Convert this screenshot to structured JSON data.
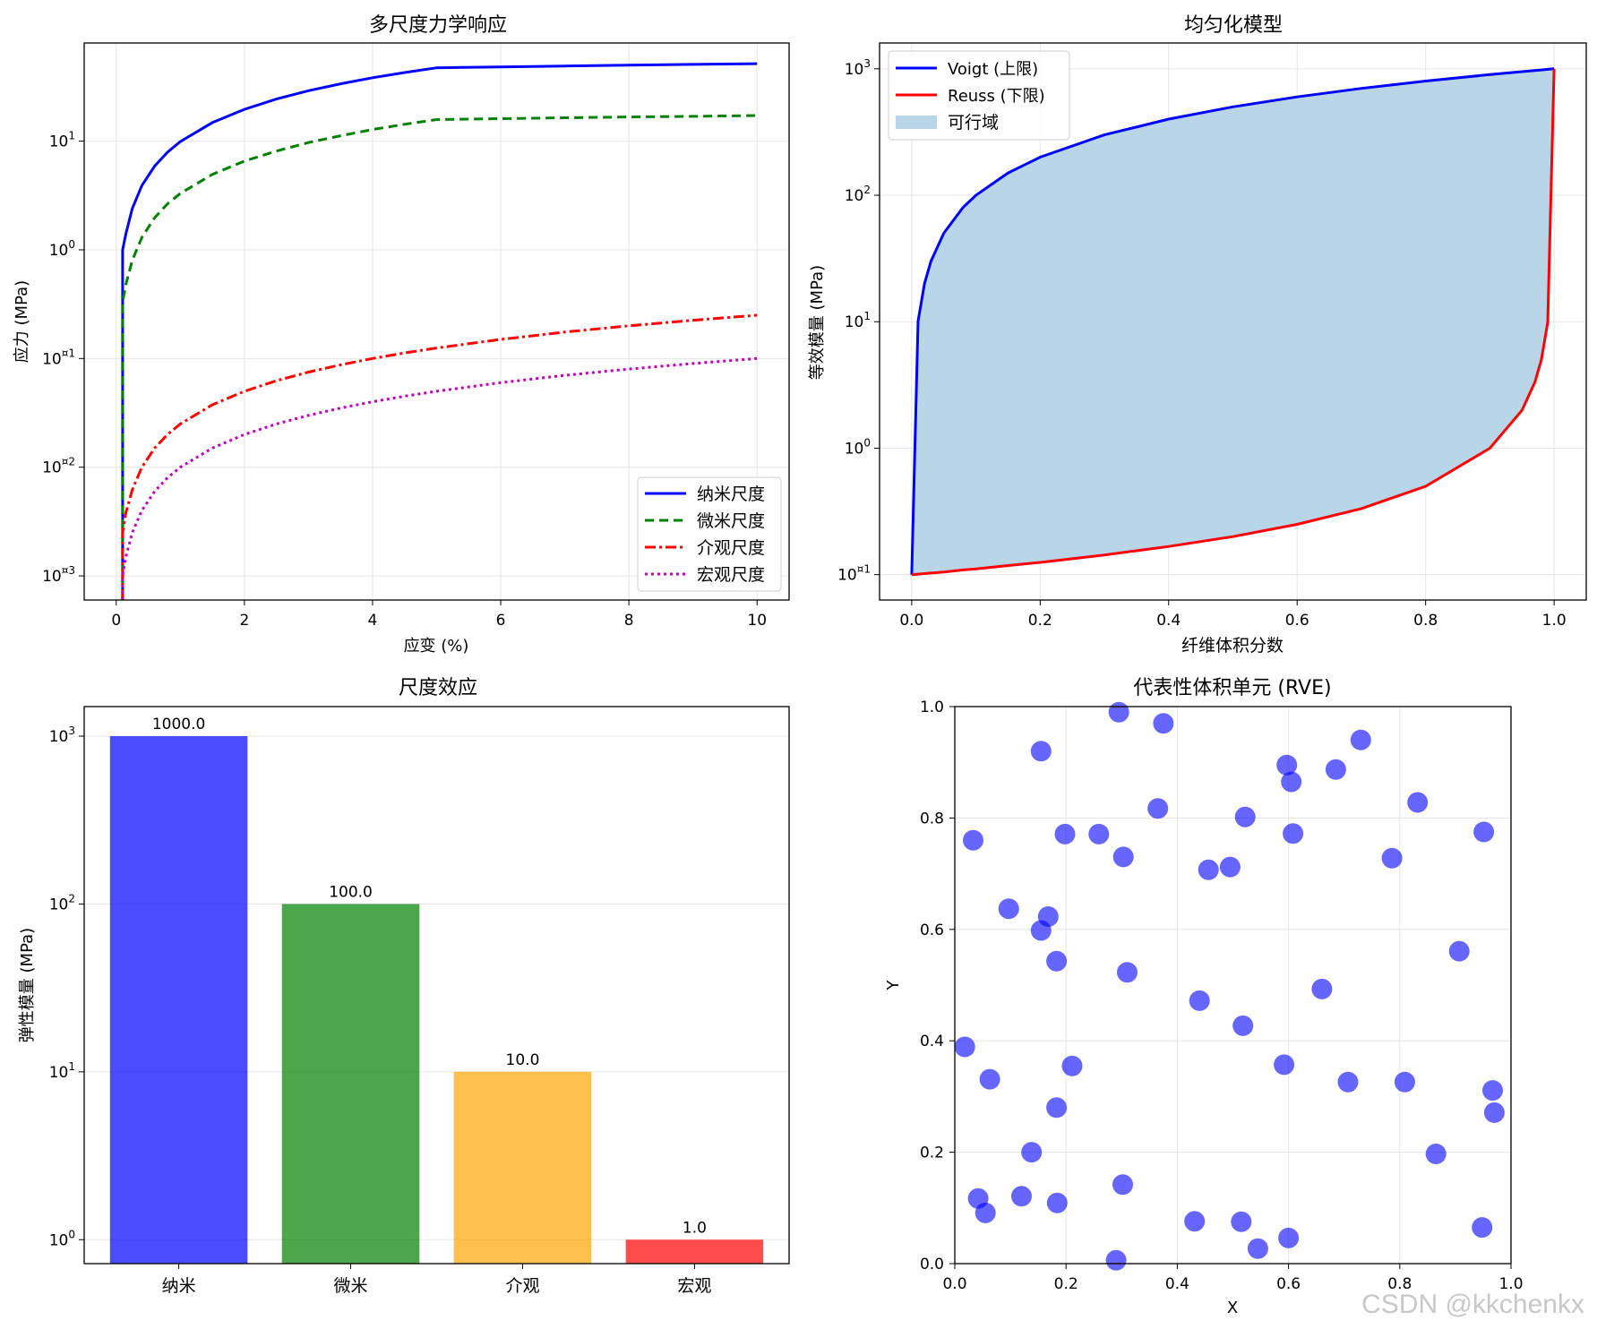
{
  "watermark": "CSDN @kkchenkx",
  "colors": {
    "blue": "#0000ff",
    "green": "#008000",
    "red": "#ff0000",
    "magenta": "#bf00bf",
    "orange": "#ffa500",
    "fill": "#b9d5e8",
    "grid": "#e6e6e6"
  },
  "chart_data": [
    {
      "id": "ax1",
      "type": "line",
      "title": "多尺度力学响应",
      "xlabel": "应变 (%)",
      "ylabel": "应力 (MPa)",
      "xscale": "linear",
      "yscale": "log",
      "xlim": [
        -0.5,
        10.5
      ],
      "ylim": [
        0.0006,
        80
      ],
      "xticks": [
        0,
        2,
        4,
        6,
        8,
        10
      ],
      "xtick_labels": [
        "0",
        "2",
        "4",
        "6",
        "8",
        "10"
      ],
      "yticks": [
        0.001,
        0.01,
        0.1,
        1,
        10
      ],
      "ytick_labels": [
        [
          "10",
          "¤3"
        ],
        [
          "10",
          "¤2"
        ],
        [
          "10",
          "¤1"
        ],
        [
          "10",
          "0"
        ],
        [
          "10",
          "1"
        ]
      ],
      "grid": true,
      "legend": "lower right",
      "series": [
        {
          "name": "纳米尺度",
          "color": "blue",
          "dash": "",
          "x": [
            0.1,
            0.1,
            0.15,
            0.25,
            0.4,
            0.6,
            0.8,
            1.0,
            1.5,
            2.0,
            2.5,
            3.0,
            3.5,
            4.0,
            4.5,
            5.0,
            6,
            7,
            8,
            9,
            10
          ],
          "y": [
            0.0006,
            1.0,
            1.4,
            2.4,
            3.9,
            5.9,
            7.9,
            9.9,
            14.8,
            19.6,
            24.4,
            29.1,
            33.7,
            38.3,
            42.8,
            47.3,
            48.2,
            49.1,
            50.0,
            50.8,
            51.6
          ]
        },
        {
          "name": "微米尺度",
          "color": "green",
          "dash": "10,6",
          "x": [
            0.1,
            0.1,
            0.15,
            0.25,
            0.4,
            0.6,
            0.8,
            1.0,
            1.5,
            2.0,
            2.5,
            3.0,
            3.5,
            4.0,
            4.5,
            5.0,
            6,
            7,
            8,
            9,
            10
          ],
          "y": [
            0.0006,
            0.33,
            0.48,
            0.8,
            1.3,
            1.98,
            2.65,
            3.3,
            4.95,
            6.55,
            8.1,
            9.7,
            11.2,
            12.8,
            14.3,
            15.8,
            16.1,
            16.4,
            16.7,
            16.9,
            17.2
          ]
        },
        {
          "name": "介观尺度",
          "color": "red",
          "dash": "12,4,3,4",
          "x": [
            0.1,
            0.1,
            0.15,
            0.25,
            0.4,
            0.6,
            0.8,
            1.0,
            1.5,
            2.0,
            2.5,
            3.0,
            3.5,
            4.0,
            4.5,
            5.0,
            6,
            7,
            8,
            9,
            10
          ],
          "y": [
            0.0006,
            0.0025,
            0.0038,
            0.0062,
            0.01,
            0.015,
            0.02,
            0.025,
            0.0375,
            0.05,
            0.0625,
            0.075,
            0.0875,
            0.1,
            0.1125,
            0.125,
            0.15,
            0.175,
            0.2,
            0.225,
            0.25
          ]
        },
        {
          "name": "宏观尺度",
          "color": "magenta",
          "dash": "3,4",
          "x": [
            0.1,
            0.1,
            0.15,
            0.25,
            0.4,
            0.6,
            0.8,
            1.0,
            1.5,
            2.0,
            2.5,
            3.0,
            3.5,
            4.0,
            4.5,
            5.0,
            6,
            7,
            8,
            9,
            10
          ],
          "y": [
            0.0006,
            0.001,
            0.0015,
            0.0025,
            0.004,
            0.006,
            0.008,
            0.01,
            0.015,
            0.02,
            0.025,
            0.03,
            0.035,
            0.04,
            0.045,
            0.05,
            0.06,
            0.07,
            0.08,
            0.09,
            0.1
          ]
        }
      ]
    },
    {
      "id": "ax2",
      "type": "area",
      "title": "均匀化模型",
      "xlabel": "纤维体积分数",
      "ylabel": "等效模量 (MPa)",
      "xscale": "linear",
      "yscale": "log",
      "xlim": [
        -0.05,
        1.05
      ],
      "ylim": [
        0.063,
        1600
      ],
      "xticks": [
        0,
        0.2,
        0.4,
        0.6,
        0.8,
        1.0
      ],
      "xtick_labels": [
        "0.0",
        "0.2",
        "0.4",
        "0.6",
        "0.8",
        "1.0"
      ],
      "yticks": [
        0.1,
        1,
        10,
        100,
        1000
      ],
      "ytick_labels": [
        [
          "10",
          "¤1"
        ],
        [
          "10",
          "0"
        ],
        [
          "10",
          "1"
        ],
        [
          "10",
          "2"
        ],
        [
          "10",
          "3"
        ]
      ],
      "grid": true,
      "legend": "upper left",
      "x": [
        0,
        0.01,
        0.02,
        0.03,
        0.05,
        0.08,
        0.1,
        0.15,
        0.2,
        0.3,
        0.4,
        0.5,
        0.6,
        0.7,
        0.8,
        0.9,
        0.95,
        0.97,
        0.98,
        0.99,
        1.0
      ],
      "series": [
        {
          "name": "Voigt (上限)",
          "color": "blue",
          "values": [
            0.1,
            10.1,
            20.1,
            30.1,
            50.1,
            80.1,
            100.1,
            150.1,
            200.1,
            300.1,
            400.1,
            500.1,
            600.0,
            700.0,
            800.0,
            900.0,
            950.0,
            970.0,
            980.0,
            990.0,
            1000.0
          ]
        },
        {
          "name": "Reuss (下限)",
          "color": "red",
          "values": [
            0.1,
            0.101,
            0.102,
            0.103,
            0.105,
            0.109,
            0.111,
            0.118,
            0.125,
            0.143,
            0.167,
            0.2,
            0.25,
            0.333,
            0.5,
            0.999,
            1.996,
            3.32,
            4.97,
            9.91,
            1000.0
          ]
        }
      ],
      "fill_label": "可行域"
    },
    {
      "id": "ax3",
      "type": "bar",
      "title": "尺度效应",
      "xlabel": "",
      "ylabel": "弹性模量 (MPa)",
      "yscale": "log",
      "ylim": [
        0.72,
        1500
      ],
      "categories": [
        "纳米",
        "微米",
        "介观",
        "宏观"
      ],
      "values": [
        1000.0,
        100.0,
        10.0,
        1.0
      ],
      "value_labels": [
        "1000.0",
        "100.0",
        "10.0",
        "1.0"
      ],
      "bar_colors": [
        "blue",
        "green",
        "orange",
        "red"
      ],
      "yticks": [
        1,
        10,
        100,
        1000
      ],
      "ytick_labels": [
        [
          "10",
          "0"
        ],
        [
          "10",
          "1"
        ],
        [
          "10",
          "2"
        ],
        [
          "10",
          "3"
        ]
      ],
      "grid": true
    },
    {
      "id": "ax4",
      "type": "scatter",
      "title": "代表性体积单元 (RVE)",
      "xlabel": "X",
      "ylabel": "Y",
      "xlim": [
        0,
        1
      ],
      "ylim": [
        0,
        1
      ],
      "xticks": [
        0,
        0.2,
        0.4,
        0.6,
        0.8,
        1.0
      ],
      "xtick_labels": [
        "0.0",
        "0.2",
        "0.4",
        "0.6",
        "0.8",
        "1.0"
      ],
      "yticks": [
        0,
        0.2,
        0.4,
        0.6,
        0.8,
        1.0
      ],
      "ytick_labels": [
        "0.0",
        "0.2",
        "0.4",
        "0.6",
        "0.8",
        "1.0"
      ],
      "grid": true,
      "points": [
        [
          0.295,
          0.99
        ],
        [
          0.375,
          0.97
        ],
        [
          0.155,
          0.92
        ],
        [
          0.73,
          0.94
        ],
        [
          0.597,
          0.895
        ],
        [
          0.685,
          0.887
        ],
        [
          0.605,
          0.865
        ],
        [
          0.832,
          0.828
        ],
        [
          0.365,
          0.817
        ],
        [
          0.522,
          0.802
        ],
        [
          0.033,
          0.76
        ],
        [
          0.198,
          0.771
        ],
        [
          0.259,
          0.771
        ],
        [
          0.608,
          0.772
        ],
        [
          0.951,
          0.775
        ],
        [
          0.303,
          0.73
        ],
        [
          0.786,
          0.728
        ],
        [
          0.456,
          0.707
        ],
        [
          0.495,
          0.712
        ],
        [
          0.097,
          0.637
        ],
        [
          0.168,
          0.623
        ],
        [
          0.155,
          0.598
        ],
        [
          0.907,
          0.561
        ],
        [
          0.183,
          0.543
        ],
        [
          0.31,
          0.523
        ],
        [
          0.66,
          0.493
        ],
        [
          0.44,
          0.472
        ],
        [
          0.518,
          0.427
        ],
        [
          0.018,
          0.389
        ],
        [
          0.211,
          0.355
        ],
        [
          0.592,
          0.357
        ],
        [
          0.063,
          0.331
        ],
        [
          0.707,
          0.326
        ],
        [
          0.809,
          0.326
        ],
        [
          0.967,
          0.311
        ],
        [
          0.97,
          0.271
        ],
        [
          0.183,
          0.28
        ],
        [
          0.138,
          0.2
        ],
        [
          0.865,
          0.197
        ],
        [
          0.302,
          0.142
        ],
        [
          0.042,
          0.117
        ],
        [
          0.12,
          0.121
        ],
        [
          0.184,
          0.109
        ],
        [
          0.055,
          0.091
        ],
        [
          0.431,
          0.076
        ],
        [
          0.515,
          0.075
        ],
        [
          0.948,
          0.065
        ],
        [
          0.6,
          0.046
        ],
        [
          0.545,
          0.027
        ],
        [
          0.29,
          0.006
        ]
      ]
    }
  ]
}
